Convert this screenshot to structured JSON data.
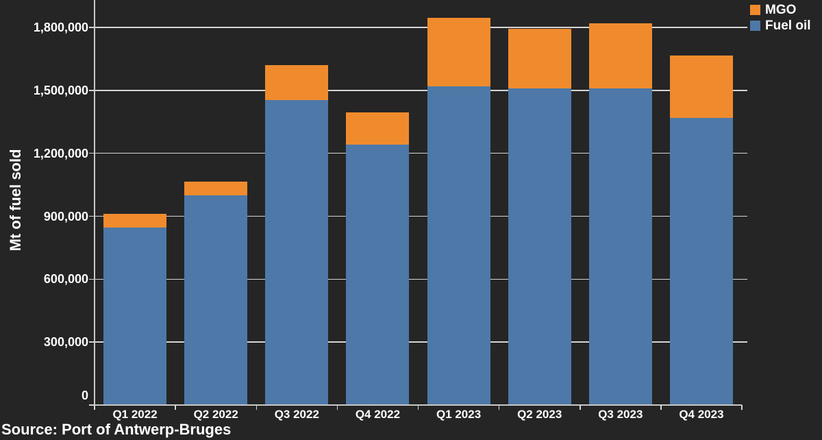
{
  "figure": {
    "background": "#252525",
    "text_color": "#ffffff",
    "grid_color": "#d6d6d6"
  },
  "chart_data": {
    "type": "bar",
    "stacked": true,
    "title": "",
    "xlabel": "",
    "ylabel": "Mt of fuel sold",
    "categories": [
      "Q1 2022",
      "Q2 2022",
      "Q3 2022",
      "Q4 2022",
      "Q1 2023",
      "Q2 2023",
      "Q3 2023",
      "Q4 2023"
    ],
    "series": [
      {
        "name": "Fuel oil",
        "color": "#4D78A8",
        "values": [
          845000,
          1000000,
          1455000,
          1240000,
          1520000,
          1510000,
          1510000,
          1370000
        ]
      },
      {
        "name": "MGO",
        "color": "#F08B2D",
        "values": [
          65000,
          65000,
          165000,
          155000,
          325000,
          285000,
          310000,
          295000
        ]
      }
    ],
    "ylim": [
      0,
      1930000
    ],
    "y_ticks": [
      {
        "value": 0,
        "label": "0"
      },
      {
        "value": 300000,
        "label": "300,000"
      },
      {
        "value": 600000,
        "label": "600,000"
      },
      {
        "value": 900000,
        "label": "900,000"
      },
      {
        "value": 1200000,
        "label": "1,200,000"
      },
      {
        "value": 1500000,
        "label": "1,500,000"
      },
      {
        "value": 1800000,
        "label": "1,800,000"
      }
    ],
    "grid": "horizontal",
    "legend_position": "top-right",
    "legend": [
      {
        "label": "MGO",
        "color": "#F08B2D"
      },
      {
        "label": "Fuel oil",
        "color": "#4D78A8"
      }
    ]
  },
  "source": {
    "text": "Source: Port of Antwerp-Bruges"
  }
}
